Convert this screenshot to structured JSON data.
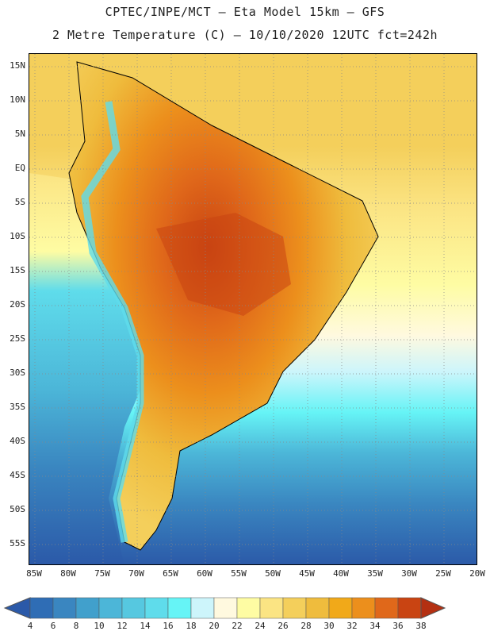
{
  "header": {
    "title_line1": "CPTEC/INPE/MCT –  Eta Model 15km – GFS",
    "title_line2": "2 Metre Temperature (C) – 10/10/2020 12UTC fct=242h"
  },
  "map": {
    "variable": "2 Metre Temperature",
    "unit": "C",
    "lat_ticks": [
      "15N",
      "10N",
      "5N",
      "EQ",
      "5S",
      "10S",
      "15S",
      "20S",
      "25S",
      "30S",
      "35S",
      "40S",
      "45S",
      "50S",
      "55S"
    ],
    "lon_ticks": [
      "85W",
      "80W",
      "75W",
      "70W",
      "65W",
      "60W",
      "55W",
      "50W",
      "45W",
      "40W",
      "35W",
      "30W",
      "25W",
      "20W"
    ]
  },
  "legend": {
    "levels": [
      "4",
      "6",
      "8",
      "10",
      "12",
      "14",
      "16",
      "18",
      "20",
      "22",
      "24",
      "26",
      "28",
      "30",
      "32",
      "34",
      "36",
      "38"
    ],
    "colors": [
      "#2b59a8",
      "#2f6db5",
      "#3a86c0",
      "#41a0cc",
      "#4cb6d8",
      "#56c8e0",
      "#5fdceb",
      "#66f4f6",
      "#cdf5fb",
      "#fff9df",
      "#fefca3",
      "#fbe483",
      "#f4cf5b",
      "#efbc3d",
      "#f1a919",
      "#ec8f1c",
      "#e0681a",
      "#c94412",
      "#b43012"
    ]
  },
  "colors": {
    "ocean_south": "#2b59a8",
    "ocean_mid": "#4cb6d8",
    "ocean_north": "#f4cf5b",
    "land_hot": "#e0681a",
    "land_warm": "#efbc3d",
    "andes_cold": "#5fdceb"
  }
}
